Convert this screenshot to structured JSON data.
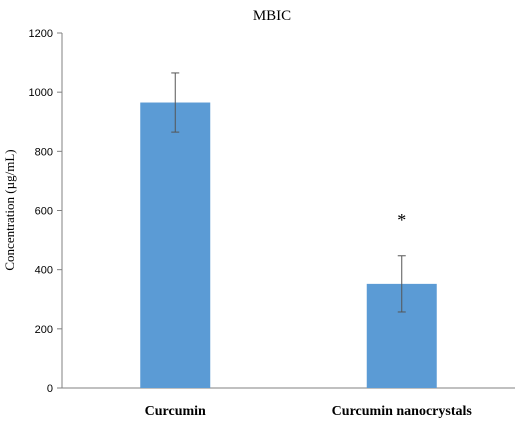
{
  "chart_data": {
    "type": "bar",
    "title": "MBIC",
    "xlabel": "",
    "ylabel": "Concentration (µg/mL)",
    "ylim": [
      0,
      1200
    ],
    "yticks": [
      0,
      200,
      400,
      600,
      800,
      1000,
      1200
    ],
    "grid": false,
    "categories": [
      "Curcumin",
      "Curcumin nanocrystals"
    ],
    "values": [
      965,
      352
    ],
    "errors": [
      100,
      95
    ],
    "annotations": [
      "",
      "*"
    ],
    "bar_color": "#5b9bd5",
    "error_color": "#555555",
    "axis_color": "#808080"
  }
}
